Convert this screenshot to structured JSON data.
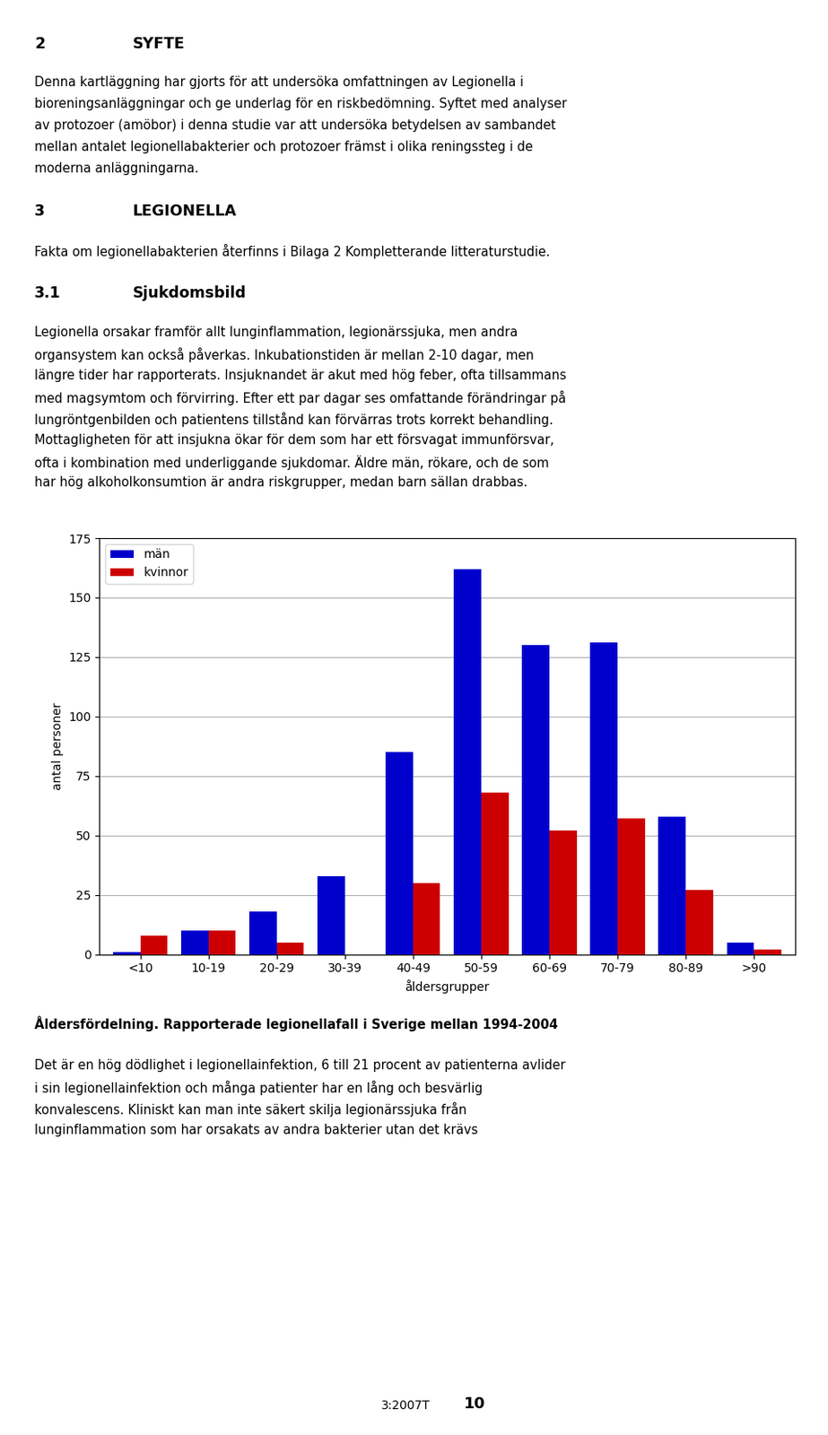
{
  "chart_data": {
    "type": "bar",
    "title": "Åldersfördelning. Rapporterade legionellafall i Sverige mellan 1994-2004",
    "xlabel": "åldersgrupper",
    "ylabel": "antal personer",
    "categories": [
      "<10",
      "10-19",
      "20-29",
      "30-39",
      "40-49",
      "50-59",
      "60-69",
      "70-79",
      "80-89",
      ">90"
    ],
    "series": [
      {
        "name": "män",
        "color": "#0000CC",
        "values": [
          1,
          10,
          18,
          33,
          85,
          162,
          130,
          131,
          58,
          5
        ]
      },
      {
        "name": "kvinnor",
        "color": "#CC0000",
        "values": [
          8,
          10,
          5,
          0,
          30,
          68,
          52,
          57,
          27,
          2
        ]
      }
    ],
    "ylim": [
      0,
      175
    ],
    "yticks": [
      0,
      25,
      50,
      75,
      100,
      125,
      150,
      175
    ],
    "grid": true,
    "legend": "upper left",
    "annotations": {
      "above": [
        [
          "2",
          "SYFTE"
        ],
        [
          "Denna kartläggning har gjorts för att undersöka omfattningen av Legionella i"
        ],
        [
          "bioreningsanläggningar och ge underlag för en riskbedömning. Syftet med analyser"
        ],
        [
          "av protozoer (amöbor) i denna studie var att undersöka betydelsen av sambandet"
        ],
        [
          "mellan antalet legionellabakterier och protozoer främst i olika reningssteg i de"
        ],
        [
          "moderna anläggningarna."
        ],
        [
          "3",
          "LEGIONELLA"
        ],
        [
          "Fakta om legionellabakterien återfinns i Bilaga 2 Kompletterande litteraturstudie."
        ],
        [
          "3.1",
          "Sjukdomsbild"
        ],
        [
          "Legionella orsakar framför allt lunginflammation, legionärssjuka, men andra"
        ],
        [
          "organsystem kan också påverkas. Inkubationstiden är mellan 2-10 dagar, men"
        ],
        [
          "längre tider har rapporterats. Insjuknandet är akut med hög feber, ofta tillsammans"
        ],
        [
          "med magsymtom och förvirring. Efter ett par dagar ses omfattande förändringar på"
        ],
        [
          "lungröntgenbilden och patientens tillstånd kan förvärras trots korrekt behandling."
        ],
        [
          "Mottagligheten för att insjukna ökar för dem som har ett försvagat immunförsvar,"
        ],
        [
          "ofta i kombination med underliggande sjukdomar. Äldre män, rökare, och de som"
        ],
        [
          "har hög alkoholkonsumtion är andra riskgrupper, medan barn sällan drabbas."
        ]
      ],
      "below": [
        [
          "Det är en hög dödlighet i legionellainfektion, 6 till 21 procent av patienterna avlider"
        ],
        [
          "i sin legionellainfektion och många patienter har en lång och besvärlig"
        ],
        [
          "konvalescens. Kliniskt kan man inte säkert skilja legionärssjuka från"
        ],
        [
          "lunginflammation som har orsakats av andra bakterier utan det krävs"
        ]
      ],
      "footer": [
        "3:2007T",
        "10"
      ]
    }
  }
}
